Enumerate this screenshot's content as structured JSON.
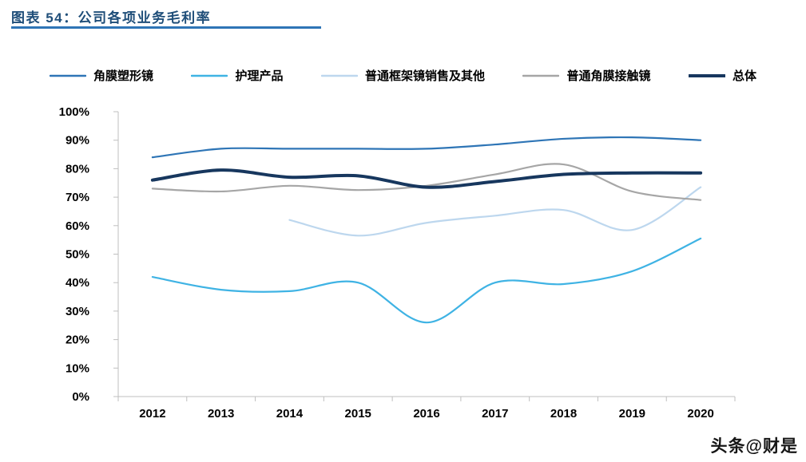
{
  "header": {
    "title": "图表 54：公司各项业务毛利率"
  },
  "watermark": "头条@财是",
  "chart_data": {
    "type": "line",
    "title": "公司各项业务毛利率",
    "x": [
      "2012",
      "2013",
      "2014",
      "2015",
      "2016",
      "2017",
      "2018",
      "2019",
      "2020"
    ],
    "ylim": [
      0,
      100
    ],
    "ytick_step": 10,
    "ytick_labels": [
      "0%",
      "10%",
      "20%",
      "30%",
      "40%",
      "50%",
      "60%",
      "70%",
      "80%",
      "90%",
      "100%"
    ],
    "grid": false,
    "legend_position": "top",
    "series": [
      {
        "name": "角膜塑形镜",
        "color": "#2e75b6",
        "line_width": 2.2,
        "values": [
          84,
          87,
          87,
          87,
          87,
          88.5,
          90.5,
          91,
          90
        ]
      },
      {
        "name": "护理产品",
        "color": "#3fb3e4",
        "line_width": 2.2,
        "values": [
          42,
          37.5,
          37,
          40,
          26,
          40,
          39.5,
          44,
          55.5
        ]
      },
      {
        "name": "普通框架镜销售及其他",
        "color": "#bdd7ee",
        "line_width": 2.2,
        "values": [
          null,
          null,
          62,
          56.5,
          61,
          63.5,
          65.5,
          58.5,
          73.5
        ]
      },
      {
        "name": "普通角膜接触镜",
        "color": "#a6a6a6",
        "line_width": 2.2,
        "values": [
          73,
          72,
          74,
          72.5,
          74,
          78,
          81.5,
          72,
          69
        ]
      },
      {
        "name": "总体",
        "color": "#17375e",
        "line_width": 4.0,
        "values": [
          76,
          79.5,
          77,
          77.5,
          73.5,
          75.5,
          78,
          78.5,
          78.5
        ]
      }
    ],
    "colors": {
      "title": "#1f4e79",
      "title_rule": "#2e75b6",
      "axis": "#bfbfbf",
      "tick_label": "#000000"
    }
  }
}
